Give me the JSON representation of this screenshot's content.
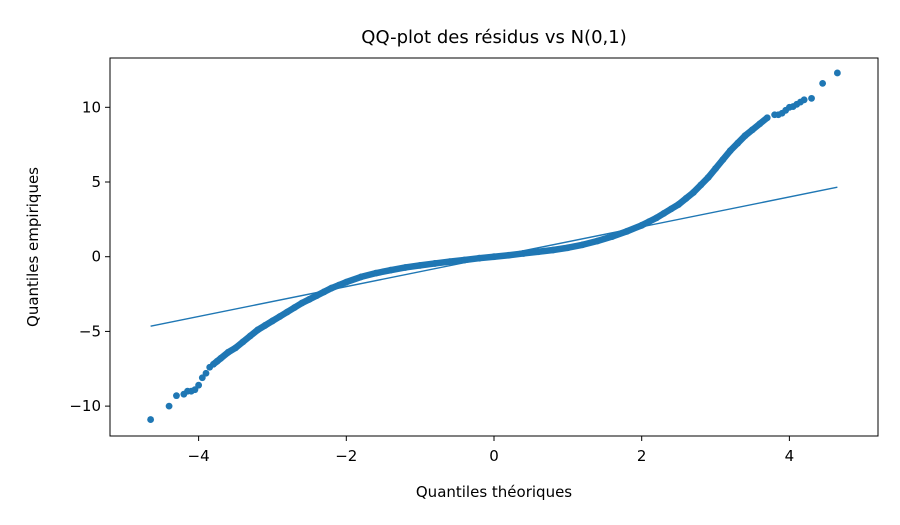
{
  "chart_data": {
    "type": "scatter",
    "title": "QQ-plot des résidus vs N(0,1)",
    "xlabel": "Quantiles théoriques",
    "ylabel": "Quantiles empiriques",
    "xlim": [
      -5.2,
      5.2
    ],
    "ylim": [
      -12.0,
      13.3
    ],
    "x_ticks": [
      -4,
      -2,
      0,
      2,
      4
    ],
    "x_tick_labels": [
      "−4",
      "−2",
      "0",
      "2",
      "4"
    ],
    "y_ticks": [
      -10,
      -5,
      0,
      5,
      10
    ],
    "y_tick_labels": [
      "−10",
      "−5",
      "0",
      "5",
      "10"
    ],
    "grid": false,
    "series": [
      {
        "kind": "points",
        "color": "#1f77b4",
        "x": [
          -4.65,
          -4.4,
          -4.3,
          -4.2,
          -4.15,
          -4.1,
          -4.05,
          -4.0,
          -3.95,
          -3.9,
          -3.85,
          -3.8,
          -3.75,
          -3.7,
          -3.6,
          -3.5,
          -3.4,
          -3.3,
          -3.2,
          -3.1,
          -3.0,
          -2.9,
          -2.8,
          -2.7,
          -2.6,
          -2.5,
          -2.4,
          -2.3,
          -2.2,
          -2.1,
          -2.0,
          -1.8,
          -1.6,
          -1.4,
          -1.2,
          -1.0,
          -0.8,
          -0.6,
          -0.4,
          -0.2,
          0.0,
          0.2,
          0.4,
          0.6,
          0.8,
          1.0,
          1.2,
          1.4,
          1.6,
          1.8,
          2.0,
          2.1,
          2.2,
          2.3,
          2.4,
          2.5,
          2.6,
          2.7,
          2.8,
          2.9,
          3.0,
          3.1,
          3.2,
          3.3,
          3.4,
          3.5,
          3.6,
          3.7,
          3.8,
          3.85,
          3.9,
          3.95,
          4.0,
          4.05,
          4.1,
          4.15,
          4.2,
          4.3,
          4.45,
          4.65
        ],
        "y": [
          -10.9,
          -10.0,
          -9.3,
          -9.2,
          -9.0,
          -9.0,
          -8.9,
          -8.6,
          -8.1,
          -7.8,
          -7.4,
          -7.2,
          -7.0,
          -6.8,
          -6.4,
          -6.1,
          -5.7,
          -5.3,
          -4.9,
          -4.6,
          -4.3,
          -4.0,
          -3.7,
          -3.4,
          -3.1,
          -2.85,
          -2.6,
          -2.35,
          -2.1,
          -1.9,
          -1.7,
          -1.35,
          -1.1,
          -0.9,
          -0.72,
          -0.58,
          -0.45,
          -0.33,
          -0.22,
          -0.1,
          0.0,
          0.1,
          0.22,
          0.33,
          0.45,
          0.6,
          0.8,
          1.05,
          1.35,
          1.7,
          2.1,
          2.35,
          2.6,
          2.9,
          3.2,
          3.5,
          3.9,
          4.3,
          4.8,
          5.3,
          5.9,
          6.5,
          7.1,
          7.6,
          8.1,
          8.5,
          8.9,
          9.3,
          9.5,
          9.5,
          9.6,
          9.8,
          10.0,
          10.05,
          10.2,
          10.35,
          10.5,
          10.6,
          11.6,
          12.3
        ]
      },
      {
        "kind": "reference-line",
        "color": "#1f77b4",
        "x": [
          -4.65,
          4.65
        ],
        "y": [
          -4.65,
          4.65
        ]
      }
    ]
  }
}
